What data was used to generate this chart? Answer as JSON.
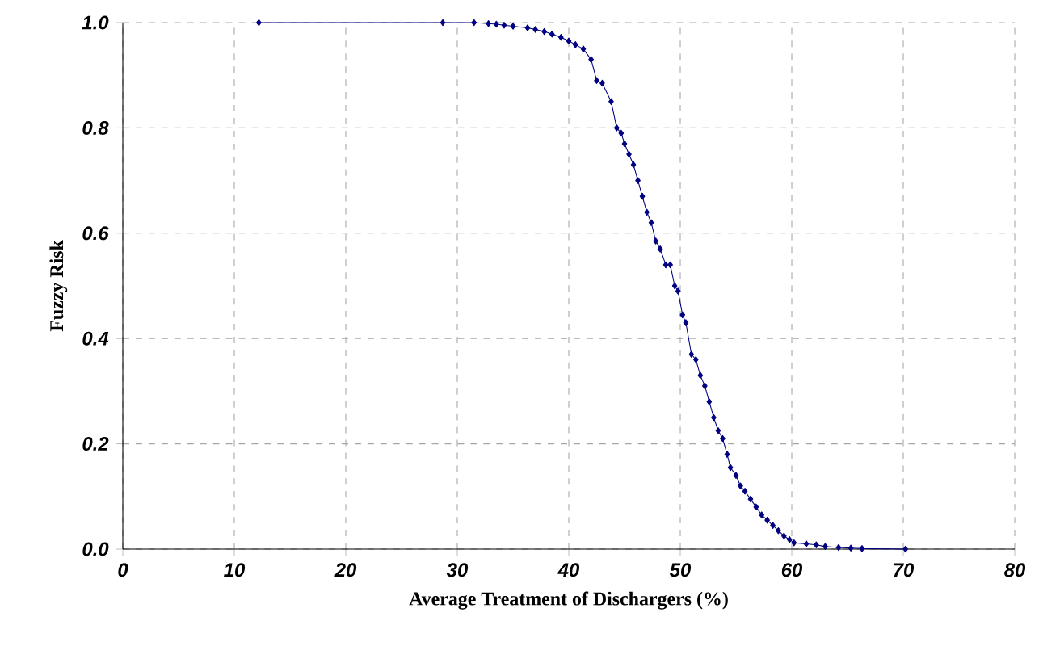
{
  "chart_data": {
    "type": "line",
    "xlabel": "Average Treatment of Dischargers (%)",
    "ylabel": "Fuzzy Risk",
    "xlim": [
      0,
      80
    ],
    "xticks": [
      0,
      10,
      20,
      30,
      40,
      50,
      60,
      70,
      80
    ],
    "ylim": [
      0,
      1
    ],
    "yticks": [
      {
        "value": 0,
        "label": "0.0"
      },
      {
        "value": 0.2,
        "label": "0.2"
      },
      {
        "value": 0.4,
        "label": "0.4"
      },
      {
        "value": 0.6,
        "label": "0.6"
      },
      {
        "value": 0.8,
        "label": "0.8"
      },
      {
        "value": 1,
        "label": "1.0"
      }
    ],
    "grid": true,
    "marker": "diamond",
    "line_style": "solid",
    "series": [
      {
        "color": "#000080",
        "x": [
          12.2,
          28.7,
          31.5,
          32.8,
          33.5,
          34.2,
          35,
          36.3,
          37,
          37.8,
          38.5,
          39.3,
          40,
          40.6,
          41.3,
          42,
          42.5,
          43,
          43.8,
          44.3,
          44.7,
          45,
          45.4,
          45.8,
          46.2,
          46.6,
          47,
          47.4,
          47.8,
          48.2,
          48.7,
          49.1,
          49.5,
          49.8,
          50.2,
          50.5,
          51,
          51.4,
          51.8,
          52.2,
          52.6,
          53,
          53.4,
          53.8,
          54.2,
          54.5,
          55,
          55.4,
          55.8,
          56.3,
          56.8,
          57.3,
          57.8,
          58.3,
          58.8,
          59.3,
          59.8,
          60.2,
          61.3,
          62.2,
          63,
          64.2,
          65.3,
          66.3,
          70.2
        ],
        "values": [
          1.0,
          1.0,
          1.0,
          0.998,
          0.997,
          0.995,
          0.993,
          0.99,
          0.987,
          0.983,
          0.978,
          0.972,
          0.965,
          0.958,
          0.95,
          0.93,
          0.89,
          0.885,
          0.85,
          0.8,
          0.79,
          0.77,
          0.75,
          0.73,
          0.7,
          0.67,
          0.64,
          0.62,
          0.585,
          0.57,
          0.54,
          0.54,
          0.5,
          0.49,
          0.445,
          0.43,
          0.37,
          0.36,
          0.33,
          0.31,
          0.28,
          0.25,
          0.225,
          0.21,
          0.18,
          0.155,
          0.14,
          0.12,
          0.11,
          0.095,
          0.08,
          0.065,
          0.055,
          0.045,
          0.035,
          0.025,
          0.018,
          0.012,
          0.01,
          0.008,
          0.005,
          0.003,
          0.002,
          0.001,
          0.0
        ]
      }
    ]
  }
}
